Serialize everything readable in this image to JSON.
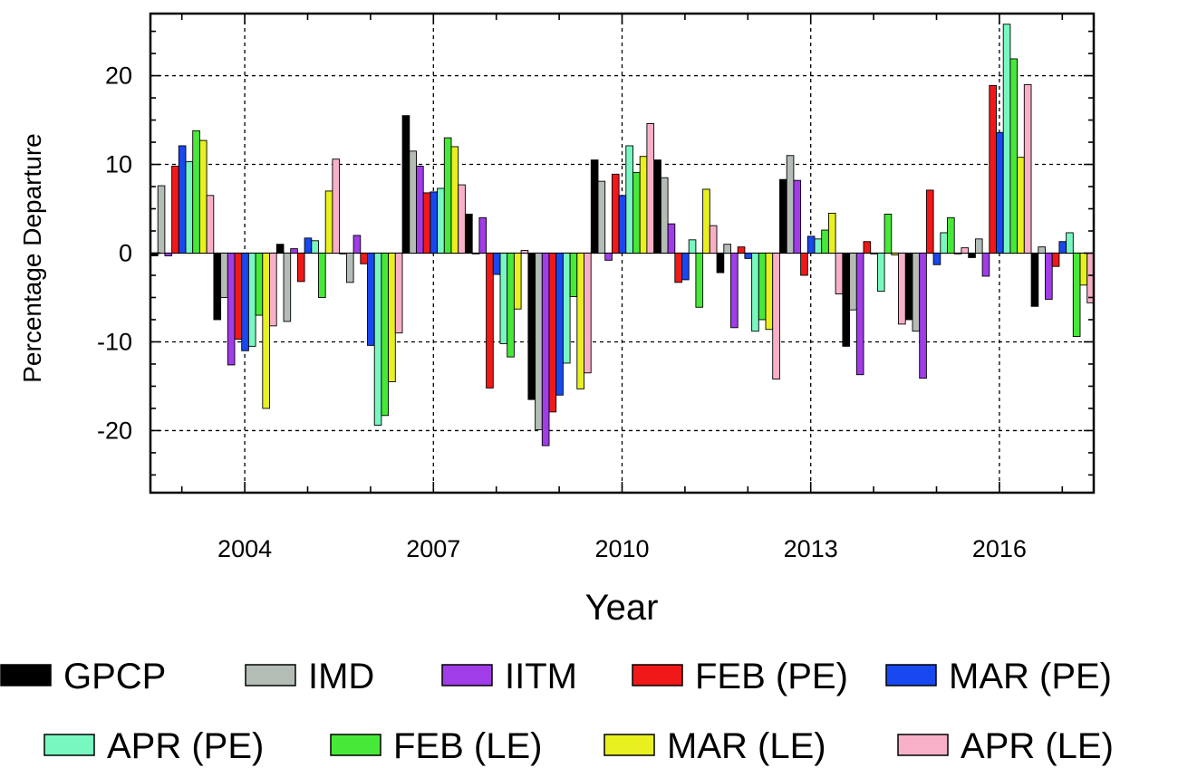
{
  "chart_data": {
    "type": "bar",
    "title": "",
    "xlabel": "Year",
    "ylabel": "Percentage Departure",
    "ylim": [
      -27,
      27
    ],
    "yticks": [
      -20,
      -10,
      0,
      10,
      20
    ],
    "grid": true,
    "legend_position": "bottom",
    "x": [
      2003,
      2004,
      2005,
      2006,
      2007,
      2008,
      2009,
      2010,
      2011,
      2012,
      2013,
      2014,
      2015,
      2016,
      2017
    ],
    "xtick_labels": [
      "2004",
      "2007",
      "2010",
      "2013",
      "2016"
    ],
    "xtick_values": [
      2004,
      2007,
      2010,
      2013,
      2016
    ],
    "series": [
      {
        "name": "GPCP",
        "color": "#000000",
        "values": [
          -0.3,
          -7.5,
          1.0,
          0.0,
          15.5,
          4.4,
          -16.5,
          10.5,
          10.5,
          -2.2,
          8.3,
          -10.5,
          -7.5,
          -0.5,
          -6.0
        ]
      },
      {
        "name": "IMD",
        "color": "#b4bcb6",
        "values": [
          7.6,
          -5.0,
          -7.7,
          -3.3,
          11.5,
          0.0,
          -19.9,
          8.1,
          8.5,
          1.0,
          11.0,
          -6.4,
          -8.8,
          1.6,
          0.7
        ]
      },
      {
        "name": "IITM",
        "color": "#a03ce8",
        "values": [
          -0.3,
          -12.6,
          0.5,
          2.0,
          9.8,
          4.0,
          -21.7,
          -0.8,
          3.3,
          -8.4,
          8.2,
          -13.7,
          -14.1,
          -2.6,
          -5.2
        ]
      },
      {
        "name": "FEB (PE)",
        "color": "#f01818",
        "values": [
          9.8,
          -9.7,
          -3.2,
          -1.2,
          6.8,
          -15.2,
          -17.9,
          8.9,
          -3.3,
          0.7,
          -2.5,
          1.3,
          7.1,
          18.9,
          -1.5
        ]
      },
      {
        "name": "MAR (PE)",
        "color": "#1848f0",
        "values": [
          12.1,
          -11.0,
          1.7,
          -10.4,
          6.9,
          -2.4,
          -16.0,
          6.5,
          -3.0,
          -0.6,
          1.9,
          0.0,
          -1.3,
          13.6,
          1.3
        ]
      },
      {
        "name": "APR (PE)",
        "color": "#78f8c0",
        "values": [
          10.3,
          -10.5,
          1.4,
          -19.4,
          7.3,
          -10.2,
          -12.4,
          12.1,
          1.5,
          -8.8,
          1.6,
          -4.3,
          2.3,
          25.8,
          2.3
        ]
      },
      {
        "name": "FEB (LE)",
        "color": "#48e838",
        "values": [
          13.8,
          -7.0,
          -5.0,
          -18.3,
          13.0,
          -11.7,
          -4.9,
          9.1,
          -6.1,
          -7.5,
          2.6,
          4.4,
          4.0,
          21.9,
          -9.4
        ]
      },
      {
        "name": "MAR (LE)",
        "color": "#e8f020",
        "values": [
          12.7,
          -17.5,
          7.0,
          -14.5,
          12.0,
          -6.3,
          -15.3,
          10.9,
          7.2,
          -8.6,
          4.5,
          -0.2,
          0.0,
          10.8,
          -3.6
        ]
      },
      {
        "name": "APR (LE)",
        "color": "#f8b0c8",
        "values": [
          6.5,
          -8.2,
          10.6,
          -9.0,
          7.7,
          0.3,
          -13.5,
          14.6,
          3.1,
          -14.2,
          -4.6,
          -8.0,
          0.6,
          19.0,
          -5.6
        ]
      }
    ]
  }
}
